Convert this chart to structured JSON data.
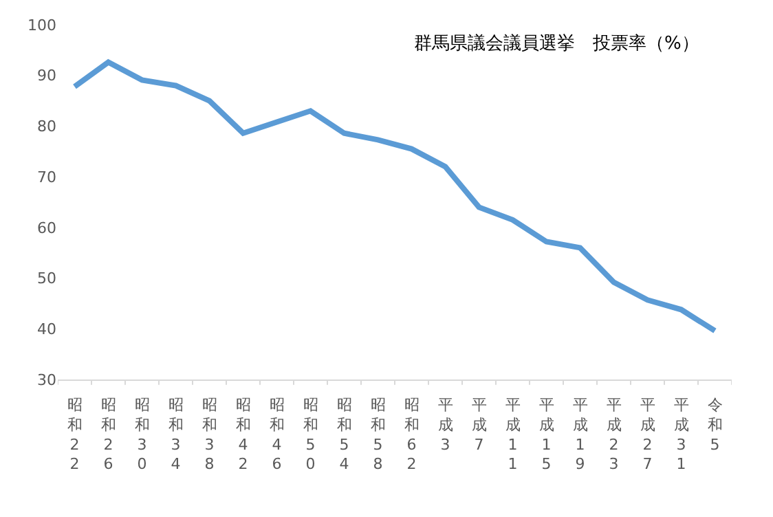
{
  "chart_data": {
    "type": "line",
    "title": "群馬県議会議員選挙　投票率（%）",
    "categories": [
      "昭和22",
      "昭和26",
      "昭和30",
      "昭和34",
      "昭和38",
      "昭和42",
      "昭和46",
      "昭和50",
      "昭和54",
      "昭和58",
      "昭和62",
      "平成3",
      "平成7",
      "平成11",
      "平成15",
      "平成19",
      "平成23",
      "平成27",
      "平成31",
      "令和5"
    ],
    "series": [
      {
        "color": "#5b9bd5",
        "values": [
          87.8,
          92.6,
          89.1,
          88,
          85,
          78.6,
          80.8,
          83,
          78.6,
          77.3,
          75.5,
          72,
          64,
          61.5,
          57.2,
          56,
          49.2,
          45.7,
          43.8,
          39.6
        ]
      }
    ],
    "ylim": [
      30,
      100
    ],
    "yticks": [
      30,
      40,
      50,
      60,
      70,
      80,
      90,
      100
    ],
    "grid": false,
    "marker": "none",
    "line_style": "solid"
  }
}
